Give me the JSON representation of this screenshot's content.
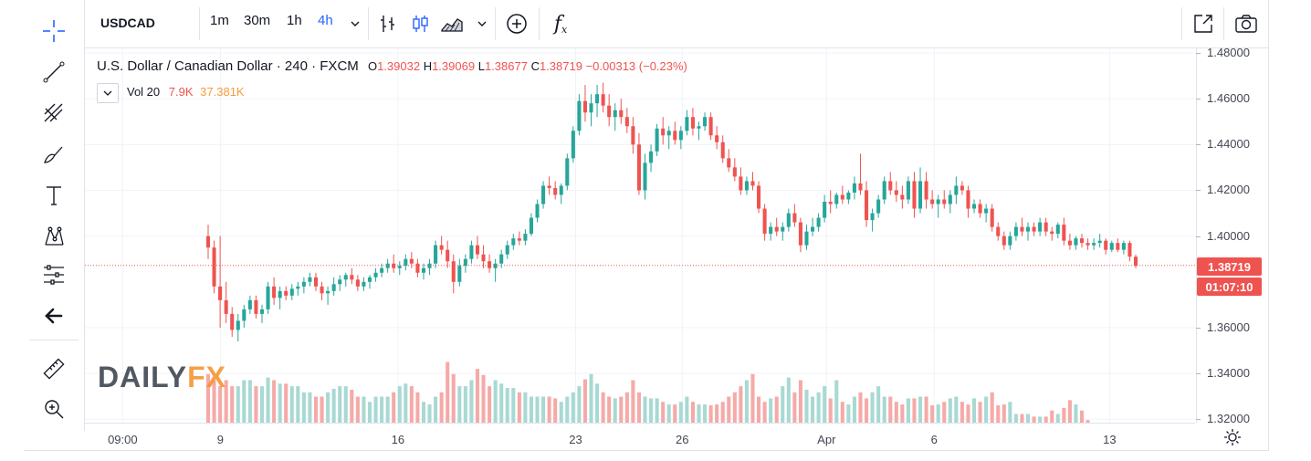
{
  "toolbar": {
    "symbol": "USDCAD",
    "intervals": [
      "1m",
      "30m",
      "1h",
      "4h"
    ],
    "active_interval": "4h",
    "fx_label": "f"
  },
  "legend": {
    "title": "U.S. Dollar / Canadian Dollar · 240 · FXCM",
    "o_label": "O",
    "o_value": "1.39032",
    "h_label": "H",
    "h_value": "1.39069",
    "l_label": "L",
    "l_value": "1.38677",
    "c_label": "C",
    "c_value": "1.38719",
    "change": "−0.00313 (−0.23%)",
    "vol_name": "Vol 20",
    "vol_value1": "7.9K",
    "vol_value2": "37.381K"
  },
  "colors": {
    "up": "#26a69a",
    "down": "#ef5350",
    "vol_up": "#a8d9d3",
    "vol_down": "#f5aaa8",
    "accent": "#2962ff",
    "grid": "#f0f3fa",
    "legend_up": "#ef5350",
    "vol_value2_color": "#f89a3c"
  },
  "price_axis": {
    "labels": [
      "1.48000",
      "1.46000",
      "1.44000",
      "1.42000",
      "1.40000",
      "1.36000",
      "1.34000",
      "1.32000"
    ],
    "last_price": "1.38719",
    "countdown": "01:07:10"
  },
  "time_axis": {
    "labels": [
      "09:00",
      "9",
      "16",
      "23",
      "26",
      "Apr",
      "6",
      "13"
    ]
  },
  "watermark": {
    "part1": "DAILY",
    "part2": "FX"
  },
  "icons": {
    "left_toolbar": [
      "crosshair-icon",
      "trendline-icon",
      "fib-icon",
      "brush-icon",
      "text-icon",
      "pattern-icon",
      "measure-icon",
      "back-arrow-icon",
      "ruler-icon",
      "zoom-in-icon"
    ],
    "top_toolbar": [
      "bar-style-icon",
      "candle-style-icon",
      "area-style-icon",
      "compare-icon",
      "indicators-icon",
      "fullscreen-icon",
      "snapshot-icon"
    ],
    "axis": [
      "settings-icon"
    ]
  },
  "chart_data": {
    "type": "candlestick",
    "symbol": "USDCAD",
    "interval": "240",
    "ylim": [
      1.3185,
      1.482
    ],
    "x_ticks": [
      "09:00",
      "9",
      "16",
      "23",
      "26",
      "Apr",
      "6",
      "13"
    ],
    "candles": [
      [
        1.4,
        1.405,
        1.39,
        1.395
      ],
      [
        1.395,
        1.398,
        1.375,
        1.378
      ],
      [
        1.378,
        1.4,
        1.36,
        1.372
      ],
      [
        1.372,
        1.38,
        1.362,
        1.366
      ],
      [
        1.366,
        1.369,
        1.356,
        1.359
      ],
      [
        1.359,
        1.366,
        1.354,
        1.363
      ],
      [
        1.363,
        1.37,
        1.36,
        1.368
      ],
      [
        1.368,
        1.374,
        1.366,
        1.372
      ],
      [
        1.372,
        1.374,
        1.364,
        1.366
      ],
      [
        1.366,
        1.37,
        1.362,
        1.368
      ],
      [
        1.368,
        1.38,
        1.366,
        1.378
      ],
      [
        1.378,
        1.382,
        1.37,
        1.373
      ],
      [
        1.373,
        1.378,
        1.368,
        1.376
      ],
      [
        1.376,
        1.378,
        1.372,
        1.374
      ],
      [
        1.374,
        1.379,
        1.372,
        1.377
      ],
      [
        1.377,
        1.38,
        1.374,
        1.378
      ],
      [
        1.378,
        1.382,
        1.375,
        1.38
      ],
      [
        1.38,
        1.384,
        1.378,
        1.382
      ],
      [
        1.382,
        1.384,
        1.376,
        1.378
      ],
      [
        1.378,
        1.38,
        1.372,
        1.375
      ],
      [
        1.375,
        1.378,
        1.37,
        1.376
      ],
      [
        1.376,
        1.382,
        1.374,
        1.379
      ],
      [
        1.379,
        1.383,
        1.376,
        1.381
      ],
      [
        1.381,
        1.384,
        1.378,
        1.383
      ],
      [
        1.383,
        1.386,
        1.379,
        1.381
      ],
      [
        1.381,
        1.383,
        1.376,
        1.378
      ],
      [
        1.378,
        1.382,
        1.376,
        1.38
      ],
      [
        1.38,
        1.383,
        1.377,
        1.382
      ],
      [
        1.382,
        1.386,
        1.38,
        1.384
      ],
      [
        1.384,
        1.388,
        1.382,
        1.386
      ],
      [
        1.386,
        1.39,
        1.384,
        1.388
      ],
      [
        1.388,
        1.392,
        1.384,
        1.386
      ],
      [
        1.386,
        1.389,
        1.383,
        1.387
      ],
      [
        1.387,
        1.392,
        1.385,
        1.39
      ],
      [
        1.39,
        1.393,
        1.386,
        1.388
      ],
      [
        1.388,
        1.39,
        1.382,
        1.384
      ],
      [
        1.384,
        1.388,
        1.381,
        1.386
      ],
      [
        1.386,
        1.39,
        1.383,
        1.388
      ],
      [
        1.388,
        1.398,
        1.386,
        1.396
      ],
      [
        1.396,
        1.4,
        1.392,
        1.394
      ],
      [
        1.394,
        1.398,
        1.386,
        1.389
      ],
      [
        1.389,
        1.392,
        1.375,
        1.38
      ],
      [
        1.38,
        1.39,
        1.378,
        1.387
      ],
      [
        1.387,
        1.392,
        1.384,
        1.39
      ],
      [
        1.39,
        1.398,
        1.388,
        1.396
      ],
      [
        1.396,
        1.4,
        1.39,
        1.392
      ],
      [
        1.392,
        1.396,
        1.386,
        1.389
      ],
      [
        1.389,
        1.392,
        1.384,
        1.386
      ],
      [
        1.386,
        1.39,
        1.38,
        1.388
      ],
      [
        1.388,
        1.394,
        1.386,
        1.392
      ],
      [
        1.392,
        1.398,
        1.39,
        1.396
      ],
      [
        1.396,
        1.401,
        1.394,
        1.399
      ],
      [
        1.399,
        1.402,
        1.396,
        1.398
      ],
      [
        1.398,
        1.403,
        1.396,
        1.401
      ],
      [
        1.401,
        1.41,
        1.4,
        1.408
      ],
      [
        1.408,
        1.416,
        1.406,
        1.414
      ],
      [
        1.414,
        1.424,
        1.412,
        1.422
      ],
      [
        1.422,
        1.426,
        1.418,
        1.421
      ],
      [
        1.421,
        1.424,
        1.416,
        1.418
      ],
      [
        1.418,
        1.423,
        1.414,
        1.422
      ],
      [
        1.422,
        1.436,
        1.42,
        1.434
      ],
      [
        1.434,
        1.448,
        1.432,
        1.446
      ],
      [
        1.446,
        1.462,
        1.444,
        1.459
      ],
      [
        1.459,
        1.466,
        1.45,
        1.454
      ],
      [
        1.454,
        1.462,
        1.448,
        1.458
      ],
      [
        1.458,
        1.466,
        1.452,
        1.462
      ],
      [
        1.462,
        1.467,
        1.454,
        1.457
      ],
      [
        1.457,
        1.462,
        1.448,
        1.452
      ],
      [
        1.452,
        1.458,
        1.446,
        1.455
      ],
      [
        1.455,
        1.46,
        1.449,
        1.452
      ],
      [
        1.452,
        1.456,
        1.445,
        1.448
      ],
      [
        1.448,
        1.452,
        1.436,
        1.44
      ],
      [
        1.44,
        1.445,
        1.418,
        1.42
      ],
      [
        1.42,
        1.436,
        1.416,
        1.432
      ],
      [
        1.432,
        1.44,
        1.428,
        1.437
      ],
      [
        1.437,
        1.449,
        1.435,
        1.447
      ],
      [
        1.447,
        1.452,
        1.44,
        1.444
      ],
      [
        1.444,
        1.448,
        1.438,
        1.446
      ],
      [
        1.446,
        1.45,
        1.44,
        1.442
      ],
      [
        1.442,
        1.448,
        1.438,
        1.446
      ],
      [
        1.446,
        1.455,
        1.444,
        1.452
      ],
      [
        1.452,
        1.456,
        1.444,
        1.447
      ],
      [
        1.447,
        1.45,
        1.442,
        1.448
      ],
      [
        1.448,
        1.454,
        1.446,
        1.452
      ],
      [
        1.452,
        1.454,
        1.442,
        1.444
      ],
      [
        1.444,
        1.448,
        1.438,
        1.441
      ],
      [
        1.441,
        1.444,
        1.432,
        1.434
      ],
      [
        1.434,
        1.438,
        1.428,
        1.43
      ],
      [
        1.43,
        1.434,
        1.424,
        1.426
      ],
      [
        1.426,
        1.43,
        1.418,
        1.42
      ],
      [
        1.42,
        1.426,
        1.418,
        1.424
      ],
      [
        1.424,
        1.428,
        1.42,
        1.422
      ],
      [
        1.422,
        1.424,
        1.41,
        1.412
      ],
      [
        1.412,
        1.414,
        1.398,
        1.401
      ],
      [
        1.401,
        1.406,
        1.398,
        1.404
      ],
      [
        1.404,
        1.408,
        1.4,
        1.402
      ],
      [
        1.402,
        1.406,
        1.398,
        1.404
      ],
      [
        1.404,
        1.412,
        1.402,
        1.41
      ],
      [
        1.41,
        1.414,
        1.404,
        1.406
      ],
      [
        1.406,
        1.408,
        1.393,
        1.396
      ],
      [
        1.396,
        1.405,
        1.394,
        1.402
      ],
      [
        1.402,
        1.408,
        1.4,
        1.404
      ],
      [
        1.404,
        1.41,
        1.402,
        1.408
      ],
      [
        1.408,
        1.418,
        1.406,
        1.415
      ],
      [
        1.415,
        1.42,
        1.41,
        1.414
      ],
      [
        1.414,
        1.419,
        1.412,
        1.418
      ],
      [
        1.418,
        1.422,
        1.414,
        1.416
      ],
      [
        1.416,
        1.42,
        1.414,
        1.419
      ],
      [
        1.419,
        1.426,
        1.416,
        1.423
      ],
      [
        1.423,
        1.436,
        1.418,
        1.42
      ],
      [
        1.42,
        1.424,
        1.404,
        1.407
      ],
      [
        1.407,
        1.412,
        1.402,
        1.41
      ],
      [
        1.41,
        1.418,
        1.408,
        1.416
      ],
      [
        1.416,
        1.426,
        1.414,
        1.424
      ],
      [
        1.424,
        1.428,
        1.418,
        1.42
      ],
      [
        1.42,
        1.424,
        1.415,
        1.418
      ],
      [
        1.418,
        1.422,
        1.412,
        1.416
      ],
      [
        1.416,
        1.426,
        1.414,
        1.424
      ],
      [
        1.424,
        1.428,
        1.408,
        1.412
      ],
      [
        1.412,
        1.43,
        1.41,
        1.424
      ],
      [
        1.424,
        1.428,
        1.412,
        1.416
      ],
      [
        1.416,
        1.42,
        1.412,
        1.414
      ],
      [
        1.414,
        1.418,
        1.408,
        1.416
      ],
      [
        1.416,
        1.42,
        1.412,
        1.414
      ],
      [
        1.414,
        1.42,
        1.41,
        1.418
      ],
      [
        1.418,
        1.426,
        1.414,
        1.422
      ],
      [
        1.422,
        1.424,
        1.418,
        1.42
      ],
      [
        1.42,
        1.422,
        1.408,
        1.412
      ],
      [
        1.412,
        1.416,
        1.41,
        1.414
      ],
      [
        1.414,
        1.416,
        1.408,
        1.41
      ],
      [
        1.41,
        1.414,
        1.406,
        1.412
      ],
      [
        1.412,
        1.414,
        1.402,
        1.404
      ],
      [
        1.404,
        1.406,
        1.398,
        1.4
      ],
      [
        1.4,
        1.402,
        1.394,
        1.396
      ],
      [
        1.396,
        1.402,
        1.394,
        1.4
      ],
      [
        1.4,
        1.406,
        1.398,
        1.404
      ],
      [
        1.404,
        1.408,
        1.4,
        1.402
      ],
      [
        1.402,
        1.406,
        1.398,
        1.404
      ],
      [
        1.404,
        1.406,
        1.4,
        1.402
      ],
      [
        1.402,
        1.408,
        1.4,
        1.406
      ],
      [
        1.406,
        1.408,
        1.4,
        1.402
      ],
      [
        1.402,
        1.404,
        1.398,
        1.401
      ],
      [
        1.401,
        1.406,
        1.399,
        1.405
      ],
      [
        1.405,
        1.408,
        1.396,
        1.398
      ],
      [
        1.398,
        1.401,
        1.394,
        1.396
      ],
      [
        1.396,
        1.4,
        1.394,
        1.399
      ],
      [
        1.399,
        1.401,
        1.395,
        1.397
      ],
      [
        1.397,
        1.399,
        1.394,
        1.396
      ],
      [
        1.396,
        1.399,
        1.394,
        1.397
      ],
      [
        1.397,
        1.401,
        1.395,
        1.398
      ],
      [
        1.398,
        1.399,
        1.392,
        1.394
      ],
      [
        1.394,
        1.398,
        1.393,
        1.397
      ],
      [
        1.397,
        1.399,
        1.393,
        1.394
      ],
      [
        1.394,
        1.398,
        1.392,
        1.397
      ],
      [
        1.397,
        1.398,
        1.389,
        1.391
      ],
      [
        1.391,
        1.392,
        1.386,
        1.387
      ]
    ],
    "volume": [
      0.56,
      0.49,
      0.42,
      0.49,
      0.42,
      0.42,
      0.49,
      0.49,
      0.42,
      0.42,
      0.52,
      0.49,
      0.45,
      0.45,
      0.42,
      0.42,
      0.35,
      0.35,
      0.3,
      0.3,
      0.35,
      0.39,
      0.42,
      0.42,
      0.38,
      0.3,
      0.3,
      0.24,
      0.3,
      0.3,
      0.3,
      0.35,
      0.42,
      0.45,
      0.42,
      0.35,
      0.24,
      0.21,
      0.3,
      0.35,
      0.7,
      0.56,
      0.42,
      0.42,
      0.49,
      0.62,
      0.55,
      0.42,
      0.49,
      0.45,
      0.4,
      0.4,
      0.35,
      0.35,
      0.3,
      0.3,
      0.3,
      0.3,
      0.28,
      0.24,
      0.3,
      0.35,
      0.42,
      0.5,
      0.56,
      0.45,
      0.35,
      0.3,
      0.28,
      0.3,
      0.35,
      0.49,
      0.35,
      0.3,
      0.28,
      0.28,
      0.24,
      0.21,
      0.21,
      0.24,
      0.3,
      0.24,
      0.21,
      0.21,
      0.2,
      0.21,
      0.24,
      0.3,
      0.35,
      0.42,
      0.49,
      0.56,
      0.3,
      0.24,
      0.28,
      0.3,
      0.42,
      0.52,
      0.35,
      0.49,
      0.38,
      0.3,
      0.35,
      0.42,
      0.28,
      0.49,
      0.24,
      0.21,
      0.3,
      0.35,
      0.28,
      0.35,
      0.42,
      0.3,
      0.3,
      0.24,
      0.21,
      0.28,
      0.28,
      0.3,
      0.3,
      0.2,
      0.21,
      0.24,
      0.28,
      0.3,
      0.24,
      0.21,
      0.28,
      0.24,
      0.3,
      0.35,
      0.2,
      0.21,
      0.24,
      0.1,
      0.1,
      0.1,
      0.07,
      0.07,
      0.07,
      0.14,
      0.1,
      0.17,
      0.26,
      0.21,
      0.14,
      0.03
    ]
  }
}
